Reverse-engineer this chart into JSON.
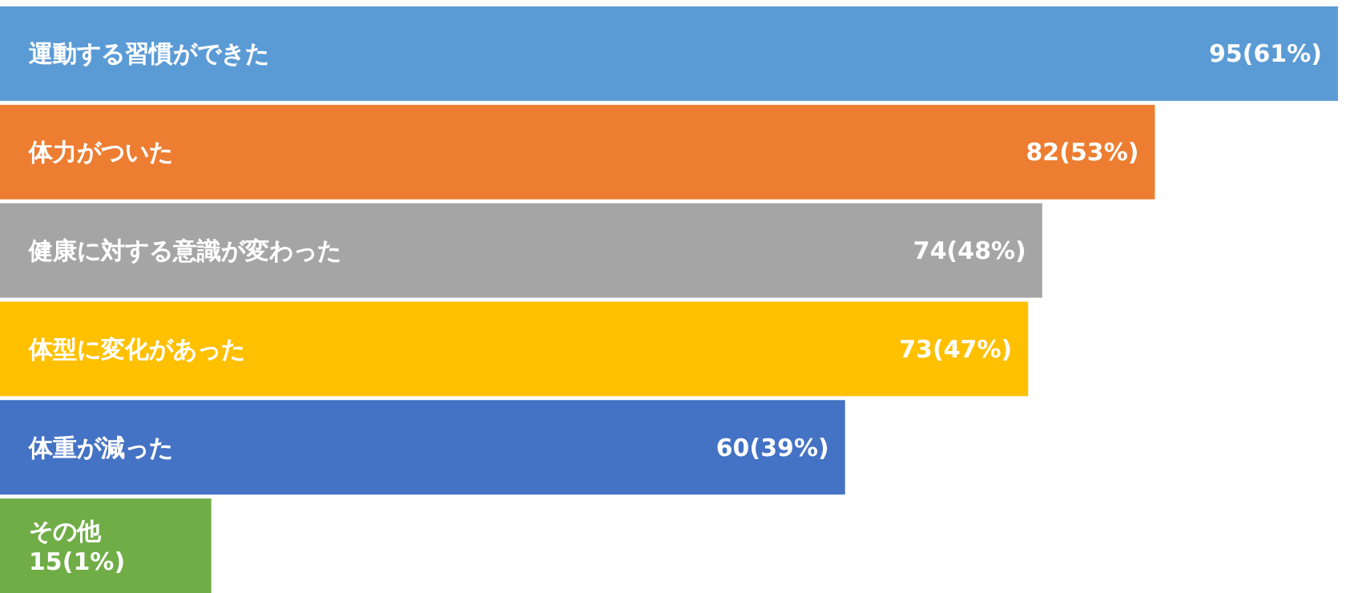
{
  "chart_data": {
    "type": "bar",
    "orientation": "horizontal",
    "categories": [
      "運動する習慣ができた",
      "体力がついた",
      "健康に対する意識が変わった",
      "体型に変化があった",
      "体重が減った",
      "その他"
    ],
    "values": [
      95,
      82,
      74,
      73,
      60,
      15
    ],
    "colors": [
      "#5b9bd5",
      "#ed7d31",
      "#a5a5a5",
      "#ffc000",
      "#4472c4",
      "#70ad47"
    ],
    "value_labels": [
      "95(61%)",
      "82(53%)",
      "74(48%)",
      "73(47%)",
      "60(39%)",
      "15(1%)"
    ]
  }
}
